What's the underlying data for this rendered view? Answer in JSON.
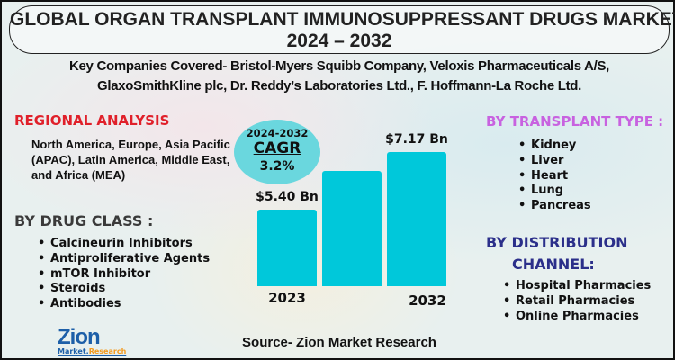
{
  "title": {
    "line1": "GLOBAL ORGAN TRANSPLANT IMMUNOSUPPRESSANT DRUGS MARKET",
    "line2": "2024 – 2032"
  },
  "companies": {
    "line1": "Key Companies Covered- Bristol-Myers Squibb Company, Veloxis Pharmaceuticals A/S,",
    "line2": "GlaxoSmithKline plc, Dr. Reddy’s Laboratories Ltd., F. Hoffmann-La Roche Ltd."
  },
  "regional": {
    "heading": "REGIONAL ANALYSIS",
    "text": "North America, Europe, Asia Pacific (APAC), Latin America, Middle East, and Africa (MEA)"
  },
  "drug_class": {
    "heading": "BY DRUG CLASS :",
    "items": [
      "Calcineurin Inhibitors",
      "Antiproliferative Agents",
      "mTOR Inhibitor",
      "Steroids",
      "Antibodies"
    ]
  },
  "transplant_type": {
    "heading": "BY  TRANSPLANT TYPE :",
    "items": [
      "Kidney",
      "Liver",
      "Heart",
      "Lung",
      "Pancreas"
    ]
  },
  "distribution": {
    "heading_line1": "BY DISTRIBUTION",
    "heading_line2": "CHANNEL:",
    "items": [
      "Hospital Pharmacies",
      "Retail Pharmacies",
      "Online Pharmacies"
    ]
  },
  "cagr": {
    "period": "2024-2032",
    "label": "CAGR",
    "value": "3.2%"
  },
  "source": "Source- Zion Market Research",
  "logo": {
    "name": "Zion",
    "sub1": "Market.",
    "sub2": "Research"
  },
  "colors": {
    "bar": "#00c8da",
    "regional": "#e0202a",
    "transplant": "#c862e0",
    "distribution": "#2b2f8a"
  },
  "chart_data": {
    "type": "bar",
    "title": "",
    "categories": [
      "2023",
      "",
      "2032"
    ],
    "values": [
      5.4,
      6.6,
      7.17
    ],
    "data_labels": [
      "$5.40 Bn",
      "",
      "$7.17 Bn"
    ],
    "unit": "USD Billion",
    "xlabel": "",
    "ylabel": "",
    "grid": false
  }
}
